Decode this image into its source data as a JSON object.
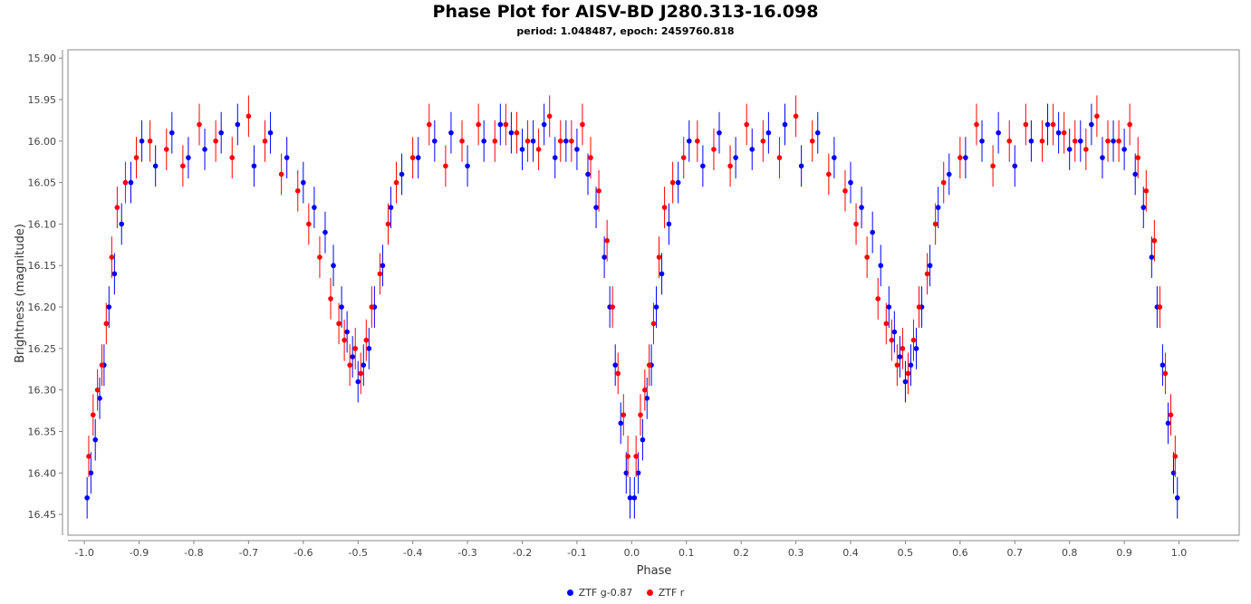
{
  "chart_data": {
    "type": "scatter",
    "title": "Phase Plot for AISV-BD J280.313-16.098",
    "subtitle": "period: 1.048487, epoch: 2459760.818",
    "xlabel": "Phase",
    "ylabel": "Brightness (magnitude)",
    "xlim": [
      -1.03,
      1.11
    ],
    "ylim": [
      16.475,
      15.89
    ],
    "y_inverted": true,
    "grid": false,
    "legend_position": "bottom-center",
    "x_ticks": [
      -1.0,
      -0.9,
      -0.8,
      -0.7,
      -0.6,
      -0.5,
      -0.4,
      -0.3,
      -0.2,
      -0.1,
      0.0,
      0.1,
      0.2,
      0.3,
      0.4,
      0.5,
      0.6,
      0.7,
      0.8,
      0.9,
      1.0
    ],
    "x_tick_labels": [
      "-1.0",
      "-0.9",
      "-0.8",
      "-0.7",
      "-0.6",
      "-0.5",
      "-0.4",
      "-0.3",
      "-0.2",
      "-0.1",
      "0.0",
      "0.1",
      "0.2",
      "0.3",
      "0.4",
      "0.5",
      "0.6",
      "0.7",
      "0.8",
      "0.9",
      "1.0"
    ],
    "y_ticks": [
      15.9,
      15.95,
      16.0,
      16.05,
      16.1,
      16.15,
      16.2,
      16.25,
      16.3,
      16.35,
      16.4,
      16.45
    ],
    "y_tick_labels": [
      "15.90",
      "15.95",
      "16.00",
      "16.05",
      "16.10",
      "16.15",
      "16.20",
      "16.25",
      "16.30",
      "16.35",
      "16.40",
      "16.45"
    ],
    "series": [
      {
        "name": "ZTF g-0.87",
        "color": "#0000ff",
        "x": [
          0.005,
          0.012,
          0.02,
          0.028,
          0.036,
          0.045,
          0.055,
          0.068,
          0.085,
          0.105,
          0.13,
          0.16,
          0.19,
          0.22,
          0.25,
          0.28,
          0.31,
          0.34,
          0.37,
          0.4,
          0.42,
          0.44,
          0.455,
          0.47,
          0.48,
          0.49,
          0.5,
          0.51,
          0.52,
          0.53,
          0.545,
          0.56,
          0.58,
          0.61,
          0.64,
          0.67,
          0.7,
          0.73,
          0.76,
          0.78,
          0.8,
          0.82,
          0.84,
          0.86,
          0.88,
          0.9,
          0.92,
          0.935,
          0.95,
          0.96,
          0.97,
          0.98,
          0.99,
          0.997
        ],
        "y": [
          16.43,
          16.4,
          16.36,
          16.31,
          16.27,
          16.2,
          16.16,
          16.1,
          16.05,
          16.0,
          16.03,
          15.99,
          16.02,
          16.01,
          15.99,
          15.98,
          16.03,
          15.99,
          16.02,
          16.05,
          16.08,
          16.11,
          16.15,
          16.2,
          16.23,
          16.26,
          16.29,
          16.27,
          16.25,
          16.2,
          16.15,
          16.08,
          16.04,
          16.02,
          16.0,
          15.99,
          16.03,
          16.0,
          15.98,
          15.99,
          16.01,
          16.0,
          15.98,
          16.02,
          16.0,
          16.01,
          16.04,
          16.08,
          16.14,
          16.2,
          16.27,
          16.34,
          16.4,
          16.43
        ],
        "error": 0.025
      },
      {
        "name": "ZTF r",
        "color": "#ff0000",
        "x": [
          0.008,
          0.016,
          0.024,
          0.032,
          0.04,
          0.05,
          0.06,
          0.075,
          0.095,
          0.12,
          0.15,
          0.18,
          0.21,
          0.24,
          0.27,
          0.3,
          0.33,
          0.36,
          0.39,
          0.41,
          0.43,
          0.45,
          0.465,
          0.475,
          0.485,
          0.495,
          0.505,
          0.515,
          0.525,
          0.54,
          0.555,
          0.57,
          0.6,
          0.63,
          0.66,
          0.69,
          0.72,
          0.75,
          0.77,
          0.79,
          0.81,
          0.83,
          0.85,
          0.87,
          0.89,
          0.91,
          0.925,
          0.94,
          0.955,
          0.965,
          0.975,
          0.985,
          0.993
        ],
        "y": [
          16.38,
          16.33,
          16.3,
          16.27,
          16.22,
          16.14,
          16.08,
          16.05,
          16.02,
          16.0,
          16.01,
          16.03,
          15.98,
          16.0,
          16.02,
          15.97,
          16.0,
          16.04,
          16.06,
          16.1,
          16.14,
          16.19,
          16.22,
          16.24,
          16.27,
          16.25,
          16.28,
          16.24,
          16.2,
          16.16,
          16.1,
          16.05,
          16.02,
          15.98,
          16.03,
          16.0,
          15.98,
          16.0,
          15.98,
          15.99,
          16.0,
          16.01,
          15.97,
          16.0,
          16.0,
          15.98,
          16.02,
          16.06,
          16.12,
          16.2,
          16.28,
          16.33,
          16.38
        ],
        "error": 0.025
      }
    ]
  },
  "legend": {
    "g_label": "ZTF g-0.87",
    "r_label": "ZTF r"
  }
}
